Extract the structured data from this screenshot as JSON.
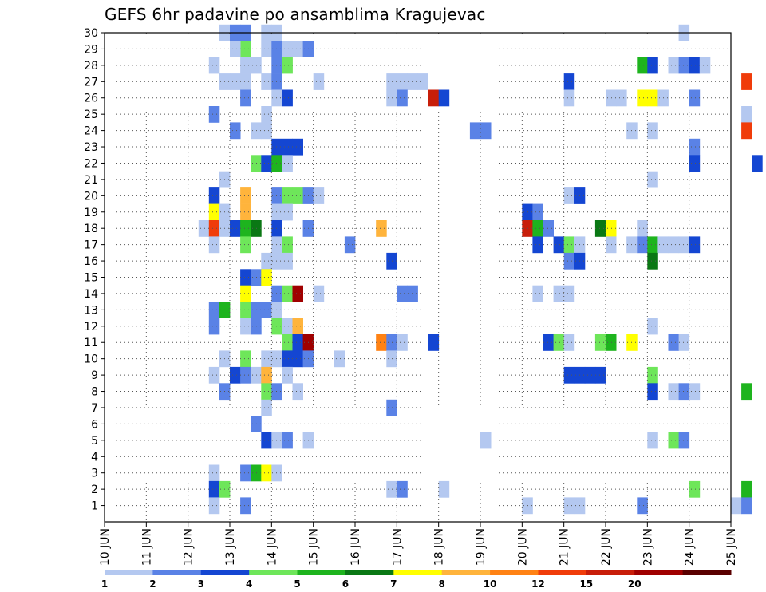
{
  "chart_data": {
    "type": "heatmap",
    "title": "GEFS 6hr padavine po ansamblima Kragujevac",
    "x": {
      "ticks": [
        {
          "day": 10,
          "label": "10 JUN"
        },
        {
          "day": 11,
          "label": "11 JUN"
        },
        {
          "day": 12,
          "label": "12 JUN"
        },
        {
          "day": 13,
          "label": "13 JUN"
        },
        {
          "day": 14,
          "label": "14 JUN"
        },
        {
          "day": 15,
          "label": "15 JUN"
        },
        {
          "day": 16,
          "label": "16 JUN"
        },
        {
          "day": 17,
          "label": "17 JUN"
        },
        {
          "day": 18,
          "label": "18 JUN"
        },
        {
          "day": 19,
          "label": "19 JUN"
        },
        {
          "day": 20,
          "label": "20 JUN"
        },
        {
          "day": 21,
          "label": "21 JUN"
        },
        {
          "day": 22,
          "label": "22 JUN"
        },
        {
          "day": 23,
          "label": "23 JUN"
        },
        {
          "day": 24,
          "label": "24 JUN"
        },
        {
          "day": 25,
          "label": "25 JUN"
        }
      ],
      "range_days": [
        10,
        25
      ],
      "step_hours": 6
    },
    "y": {
      "ticks": [
        1,
        2,
        3,
        4,
        5,
        6,
        7,
        8,
        9,
        10,
        11,
        12,
        13,
        14,
        15,
        16,
        17,
        18,
        19,
        20,
        21,
        22,
        23,
        24,
        25,
        26,
        27,
        28,
        29,
        30
      ],
      "range": [
        0,
        30
      ]
    },
    "grid": "dotted",
    "legend": {
      "placement": "bottom",
      "levels": [
        {
          "label": "1",
          "color": "#b4c8f0"
        },
        {
          "label": "2",
          "color": "#5a82e6"
        },
        {
          "label": "3",
          "color": "#1446d2"
        },
        {
          "label": "4",
          "color": "#6ee65a"
        },
        {
          "label": "5",
          "color": "#1eb41e"
        },
        {
          "label": "6",
          "color": "#0a7814"
        },
        {
          "label": "7",
          "color": "#ffff00"
        },
        {
          "label": "8",
          "color": "#ffb43c"
        },
        {
          "label": "10",
          "color": "#ff8214"
        },
        {
          "label": "12",
          "color": "#f03c0a"
        },
        {
          "label": "15",
          "color": "#c81e0a"
        },
        {
          "label": "20",
          "color": "#a00000"
        },
        {
          "label": "",
          "color": "#5a0000"
        }
      ]
    },
    "cells": [
      [
        30,
        "12 18",
        1
      ],
      [
        30,
        "13 00",
        2
      ],
      [
        30,
        "13 06",
        2
      ],
      [
        30,
        "13 18",
        1
      ],
      [
        30,
        "14 00",
        1
      ],
      [
        30,
        "23 18",
        1
      ],
      [
        29,
        "13 06",
        4
      ],
      [
        29,
        "13 18",
        1
      ],
      [
        29,
        "13 00",
        1
      ],
      [
        29,
        "14 00",
        2
      ],
      [
        29,
        "14 06",
        1
      ],
      [
        29,
        "14 12",
        1
      ],
      [
        29,
        "14 18",
        2
      ],
      [
        28,
        "12 12",
        1
      ],
      [
        28,
        "13 06",
        1
      ],
      [
        28,
        "13 12",
        1
      ],
      [
        28,
        "14 00",
        2
      ],
      [
        28,
        "14 06",
        4
      ],
      [
        28,
        "22 18",
        5
      ],
      [
        28,
        "23 00",
        3
      ],
      [
        28,
        "23 12",
        1
      ],
      [
        28,
        "23 18",
        2
      ],
      [
        28,
        "24 00",
        3
      ],
      [
        28,
        "24 06",
        1
      ],
      [
        27,
        "12 18",
        1
      ],
      [
        27,
        "13 00",
        1
      ],
      [
        27,
        "13 06",
        1
      ],
      [
        27,
        "13 18",
        1
      ],
      [
        27,
        "14 00",
        2
      ],
      [
        27,
        "15 00",
        1
      ],
      [
        27,
        "16 18",
        1
      ],
      [
        27,
        "17 00",
        1
      ],
      [
        27,
        "17 06",
        1
      ],
      [
        27,
        "17 12",
        1
      ],
      [
        27,
        "21 00",
        3
      ],
      [
        27,
        "25 06",
        12
      ],
      [
        26,
        "13 06",
        2
      ],
      [
        26,
        "14 00",
        1
      ],
      [
        26,
        "14 06",
        3
      ],
      [
        26,
        "16 18",
        1
      ],
      [
        26,
        "17 00",
        2
      ],
      [
        26,
        "17 18",
        15
      ],
      [
        26,
        "18 00",
        3
      ],
      [
        26,
        "21 00",
        1
      ],
      [
        26,
        "22 00",
        1
      ],
      [
        26,
        "22 06",
        1
      ],
      [
        26,
        "22 18",
        7
      ],
      [
        26,
        "23 00",
        7
      ],
      [
        26,
        "23 06",
        1
      ],
      [
        26,
        "24 00",
        2
      ],
      [
        25,
        "12 12",
        2
      ],
      [
        25,
        "13 18",
        1
      ],
      [
        25,
        "25 06",
        1
      ],
      [
        24,
        "13 00",
        2
      ],
      [
        24,
        "13 12",
        1
      ],
      [
        24,
        "13 18",
        1
      ],
      [
        24,
        "18 18",
        2
      ],
      [
        24,
        "19 00",
        2
      ],
      [
        24,
        "22 12",
        1
      ],
      [
        24,
        "23 00",
        1
      ],
      [
        24,
        "25 06",
        12
      ],
      [
        23,
        "14 00",
        3
      ],
      [
        23,
        "14 06",
        3
      ],
      [
        23,
        "14 12",
        3
      ],
      [
        23,
        "24 00",
        2
      ],
      [
        22,
        "13 12",
        4
      ],
      [
        22,
        "13 18",
        3
      ],
      [
        22,
        "14 00",
        5
      ],
      [
        22,
        "14 06",
        1
      ],
      [
        22,
        "24 00",
        3
      ],
      [
        22,
        "25 12",
        3
      ],
      [
        21,
        "12 18",
        1
      ],
      [
        21,
        "23 00",
        1
      ],
      [
        20,
        "12 12",
        3
      ],
      [
        20,
        "13 06",
        8
      ],
      [
        20,
        "14 00",
        2
      ],
      [
        20,
        "14 06",
        4
      ],
      [
        20,
        "14 12",
        4
      ],
      [
        20,
        "14 18",
        2
      ],
      [
        20,
        "15 00",
        1
      ],
      [
        20,
        "21 00",
        1
      ],
      [
        20,
        "21 06",
        3
      ],
      [
        19,
        "12 12",
        7
      ],
      [
        19,
        "12 18",
        1
      ],
      [
        19,
        "13 06",
        8
      ],
      [
        19,
        "14 00",
        1
      ],
      [
        19,
        "14 06",
        1
      ],
      [
        19,
        "20 00",
        3
      ],
      [
        19,
        "20 06",
        2
      ],
      [
        18,
        "12 06",
        1
      ],
      [
        18,
        "12 12",
        12
      ],
      [
        18,
        "12 18",
        1
      ],
      [
        18,
        "13 00",
        3
      ],
      [
        18,
        "13 06",
        5
      ],
      [
        18,
        "13 12",
        6
      ],
      [
        18,
        "14 00",
        3
      ],
      [
        18,
        "14 18",
        2
      ],
      [
        18,
        "16 12",
        8
      ],
      [
        18,
        "20 00",
        15
      ],
      [
        18,
        "20 06",
        5
      ],
      [
        18,
        "20 12",
        2
      ],
      [
        18,
        "21 18",
        6
      ],
      [
        18,
        "22 00",
        7
      ],
      [
        18,
        "22 18",
        1
      ],
      [
        17,
        "12 12",
        1
      ],
      [
        17,
        "13 06",
        4
      ],
      [
        17,
        "14 00",
        1
      ],
      [
        17,
        "14 06",
        4
      ],
      [
        17,
        "15 18",
        2
      ],
      [
        17,
        "20 06",
        3
      ],
      [
        17,
        "20 18",
        3
      ],
      [
        17,
        "21 00",
        4
      ],
      [
        17,
        "21 06",
        1
      ],
      [
        17,
        "22 00",
        1
      ],
      [
        17,
        "22 12",
        1
      ],
      [
        17,
        "22 18",
        2
      ],
      [
        17,
        "23 00",
        5
      ],
      [
        17,
        "23 06",
        1
      ],
      [
        17,
        "23 12",
        1
      ],
      [
        17,
        "23 18",
        1
      ],
      [
        17,
        "24 00",
        3
      ],
      [
        16,
        "13 18",
        1
      ],
      [
        16,
        "14 00",
        1
      ],
      [
        16,
        "14 06",
        1
      ],
      [
        16,
        "16 18",
        3
      ],
      [
        16,
        "21 00",
        2
      ],
      [
        16,
        "21 06",
        3
      ],
      [
        16,
        "23 00",
        6
      ],
      [
        15,
        "13 06",
        3
      ],
      [
        15,
        "13 12",
        2
      ],
      [
        15,
        "13 18",
        7
      ],
      [
        14,
        "13 06",
        7
      ],
      [
        14,
        "14 00",
        2
      ],
      [
        14,
        "14 06",
        4
      ],
      [
        14,
        "14 12",
        20
      ],
      [
        14,
        "15 00",
        1
      ],
      [
        14,
        "17 00",
        2
      ],
      [
        14,
        "17 06",
        2
      ],
      [
        14,
        "20 06",
        1
      ],
      [
        14,
        "20 18",
        1
      ],
      [
        14,
        "21 00",
        1
      ],
      [
        13,
        "12 12",
        2
      ],
      [
        13,
        "12 18",
        5
      ],
      [
        13,
        "13 06",
        4
      ],
      [
        13,
        "13 12",
        2
      ],
      [
        13,
        "13 18",
        2
      ],
      [
        13,
        "14 00",
        1
      ],
      [
        12,
        "12 12",
        2
      ],
      [
        12,
        "13 06",
        1
      ],
      [
        12,
        "13 12",
        2
      ],
      [
        12,
        "14 00",
        4
      ],
      [
        12,
        "14 06",
        1
      ],
      [
        12,
        "14 12",
        8
      ],
      [
        12,
        "23 00",
        1
      ],
      [
        11,
        "14 06",
        4
      ],
      [
        11,
        "14 12",
        3
      ],
      [
        11,
        "14 18",
        20
      ],
      [
        11,
        "16 12",
        10
      ],
      [
        11,
        "16 18",
        2
      ],
      [
        11,
        "17 00",
        1
      ],
      [
        11,
        "17 18",
        3
      ],
      [
        11,
        "20 12",
        3
      ],
      [
        11,
        "20 18",
        4
      ],
      [
        11,
        "21 00",
        1
      ],
      [
        11,
        "21 18",
        4
      ],
      [
        11,
        "22 00",
        5
      ],
      [
        11,
        "22 12",
        7
      ],
      [
        11,
        "23 12",
        2
      ],
      [
        11,
        "23 18",
        1
      ],
      [
        10,
        "14 06",
        3
      ],
      [
        10,
        "14 12",
        3
      ],
      [
        10,
        "14 18",
        2
      ],
      [
        10,
        "12 18",
        1
      ],
      [
        10,
        "13 06",
        4
      ],
      [
        10,
        "13 18",
        1
      ],
      [
        10,
        "14 00",
        1
      ],
      [
        10,
        "15 12",
        1
      ],
      [
        10,
        "16 18",
        1
      ],
      [
        9,
        "12 12",
        1
      ],
      [
        9,
        "13 00",
        3
      ],
      [
        9,
        "13 06",
        2
      ],
      [
        9,
        "13 12",
        1
      ],
      [
        9,
        "13 18",
        8
      ],
      [
        9,
        "14 06",
        1
      ],
      [
        9,
        "21 00",
        3
      ],
      [
        9,
        "21 06",
        3
      ],
      [
        9,
        "21 12",
        3
      ],
      [
        9,
        "21 18",
        3
      ],
      [
        9,
        "23 00",
        4
      ],
      [
        8,
        "12 18",
        2
      ],
      [
        8,
        "13 18",
        4
      ],
      [
        8,
        "14 00",
        2
      ],
      [
        8,
        "14 12",
        1
      ],
      [
        8,
        "23 00",
        3
      ],
      [
        8,
        "23 12",
        1
      ],
      [
        8,
        "23 18",
        2
      ],
      [
        8,
        "24 00",
        1
      ],
      [
        8,
        "25 06",
        5
      ],
      [
        7,
        "13 18",
        1
      ],
      [
        7,
        "16 18",
        2
      ],
      [
        6,
        "13 12",
        2
      ],
      [
        5,
        "13 18",
        3
      ],
      [
        5,
        "14 00",
        1
      ],
      [
        5,
        "14 06",
        2
      ],
      [
        5,
        "14 18",
        1
      ],
      [
        5,
        "19 00",
        1
      ],
      [
        5,
        "23 00",
        1
      ],
      [
        5,
        "23 12",
        4
      ],
      [
        5,
        "23 18",
        2
      ],
      [
        3,
        "12 12",
        1
      ],
      [
        3,
        "13 06",
        2
      ],
      [
        3,
        "13 12",
        5
      ],
      [
        3,
        "13 18",
        7
      ],
      [
        3,
        "14 00",
        1
      ],
      [
        2,
        "12 12",
        3
      ],
      [
        2,
        "12 18",
        4
      ],
      [
        2,
        "16 18",
        1
      ],
      [
        2,
        "17 00",
        2
      ],
      [
        2,
        "18 00",
        1
      ],
      [
        2,
        "24 00",
        4
      ],
      [
        2,
        "25 06",
        5
      ],
      [
        1,
        "12 12",
        1
      ],
      [
        1,
        "13 06",
        2
      ],
      [
        1,
        "20 00",
        1
      ],
      [
        1,
        "21 00",
        1
      ],
      [
        1,
        "21 06",
        1
      ],
      [
        1,
        "22 18",
        2
      ],
      [
        1,
        "25 00",
        1
      ],
      [
        1,
        "25 06",
        2
      ]
    ]
  }
}
